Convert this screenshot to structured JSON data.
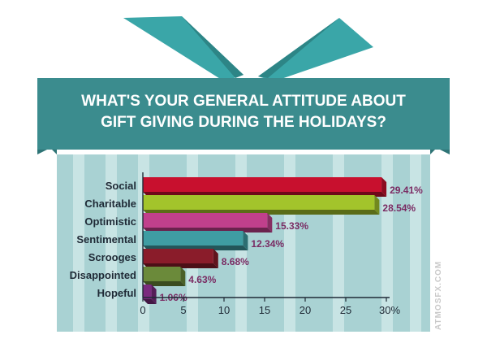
{
  "title_lines": [
    "WHAT'S YOUR GENERAL ATTITUDE ABOUT",
    "GIFT GIVING DURING THE HOLIDAYS?"
  ],
  "watermark": "ATMOSFX.COM",
  "colors": {
    "ribbon": "#3aa6a8",
    "ribbon_dark": "#2d8586",
    "band": "#3b8c8e",
    "band_dark": "#2e7476",
    "box": "#a9d2d3",
    "stripe": "#c8e4e4"
  },
  "chart_data": {
    "type": "bar",
    "orientation": "horizontal",
    "title": "WHAT'S YOUR GENERAL ATTITUDE ABOUT GIFT GIVING DURING THE HOLIDAYS?",
    "categories": [
      "Social",
      "Charitable",
      "Optimistic",
      "Sentimental",
      "Scrooges",
      "Disappointed",
      "Hopeful"
    ],
    "values": [
      29.41,
      28.54,
      15.33,
      12.34,
      8.68,
      4.63,
      1.06
    ],
    "value_labels": [
      "29.41%",
      "28.54%",
      "15.33%",
      "12.34%",
      "8.68%",
      "4.63%",
      "1.06%"
    ],
    "bar_colors": [
      "#c8102e",
      "#a3c42b",
      "#c0408c",
      "#3f9da3",
      "#8a1c2a",
      "#6b8a3a",
      "#7a2b7e"
    ],
    "xlim": [
      0,
      30
    ],
    "xticks": [
      0,
      5,
      10,
      15,
      20,
      25,
      30
    ],
    "xtick_labels": [
      "0",
      "5",
      "10",
      "15",
      "20",
      "25",
      "30%"
    ],
    "xlabel": "",
    "ylabel": "",
    "grid": false,
    "legend": "none"
  }
}
